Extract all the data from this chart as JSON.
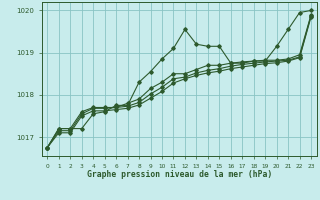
{
  "background_color": "#c8ecec",
  "plot_bg_color": "#c8ecec",
  "grid_color": "#89c4c4",
  "line_color": "#2d5a2d",
  "spine_color": "#2d5a2d",
  "title": "Graphe pression niveau de la mer (hPa)",
  "xlim": [
    -0.5,
    23.5
  ],
  "ylim": [
    1016.55,
    1020.2
  ],
  "yticks": [
    1017,
    1018,
    1019,
    1020
  ],
  "xticks": [
    0,
    1,
    2,
    3,
    4,
    5,
    6,
    7,
    8,
    9,
    10,
    11,
    12,
    13,
    14,
    15,
    16,
    17,
    18,
    19,
    20,
    21,
    22,
    23
  ],
  "series": [
    [
      1016.75,
      1017.2,
      1017.2,
      1017.2,
      1017.55,
      1017.6,
      1017.75,
      1017.75,
      1018.3,
      1018.55,
      1018.85,
      1019.1,
      1019.55,
      1019.2,
      1019.15,
      1019.15,
      1018.75,
      1018.75,
      1018.8,
      1018.8,
      1019.15,
      1019.55,
      1019.95,
      1020.0
    ],
    [
      1016.75,
      1017.2,
      1017.2,
      1017.6,
      1017.7,
      1017.7,
      1017.7,
      1017.8,
      1017.9,
      1018.15,
      1018.3,
      1018.5,
      1018.5,
      1018.6,
      1018.7,
      1018.7,
      1018.75,
      1018.78,
      1018.8,
      1018.82,
      1018.82,
      1018.85,
      1018.95,
      1019.9
    ],
    [
      1016.75,
      1017.15,
      1017.15,
      1017.55,
      1017.68,
      1017.68,
      1017.7,
      1017.73,
      1017.82,
      1018.02,
      1018.18,
      1018.38,
      1018.42,
      1018.52,
      1018.58,
      1018.62,
      1018.68,
      1018.72,
      1018.75,
      1018.78,
      1018.8,
      1018.82,
      1018.9,
      1019.88
    ],
    [
      1016.75,
      1017.1,
      1017.1,
      1017.5,
      1017.62,
      1017.62,
      1017.65,
      1017.68,
      1017.76,
      1017.92,
      1018.08,
      1018.28,
      1018.38,
      1018.46,
      1018.52,
      1018.56,
      1018.62,
      1018.66,
      1018.7,
      1018.74,
      1018.76,
      1018.8,
      1018.88,
      1019.85
    ]
  ]
}
